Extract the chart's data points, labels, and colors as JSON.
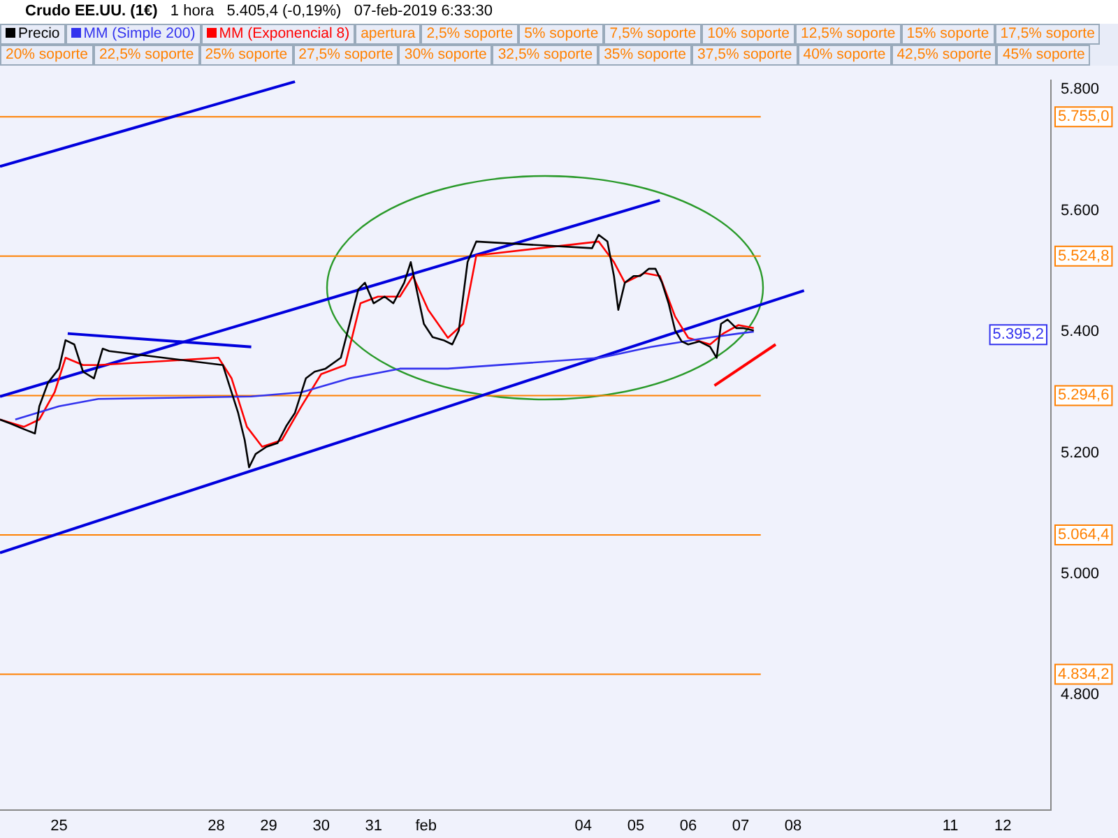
{
  "chart_data": {
    "type": "line",
    "title": "Crudo EE.UU. (1€)",
    "subtitle": "1 hora   5.405,4 (-0,19%)   07-feb-2019 6:33:30",
    "legend": "top left",
    "marker": "none",
    "line_style": "solid",
    "xlim": [
      "2019-01-23T21:00",
      "2019-02-12T22:00"
    ],
    "ylim": [
      4610,
      5815
    ],
    "xticks": [
      {
        "value": "2019-01-25",
        "label": "25"
      },
      {
        "value": "2019-01-28",
        "label": "28"
      },
      {
        "value": "2019-01-29",
        "label": "29"
      },
      {
        "value": "2019-01-30",
        "label": "30"
      },
      {
        "value": "2019-01-31",
        "label": "31"
      },
      {
        "value": "2019-02-01",
        "label": "feb"
      },
      {
        "value": "2019-02-04",
        "label": "04"
      },
      {
        "value": "2019-02-05",
        "label": "05"
      },
      {
        "value": "2019-02-06",
        "label": "06"
      },
      {
        "value": "2019-02-07",
        "label": "07"
      },
      {
        "value": "2019-02-08",
        "label": "08"
      },
      {
        "value": "2019-02-11",
        "label": "11"
      },
      {
        "value": "2019-02-12",
        "label": "12"
      }
    ],
    "yticks": [
      {
        "value": 4800,
        "label": "4.800"
      },
      {
        "value": 5000,
        "label": "5.000"
      },
      {
        "value": 5200,
        "label": "5.200"
      },
      {
        "value": 5400,
        "label": "5.400"
      },
      {
        "value": 5600,
        "label": "5.600"
      },
      {
        "value": 5800,
        "label": "5.800"
      }
    ],
    "series": [
      {
        "name": "Precio",
        "color": "#000000",
        "x": [
          "2019-01-23T21:00",
          "2019-01-24T02:00",
          "2019-01-24T08:00",
          "2019-01-24T13:00",
          "2019-01-24T15:00",
          "2019-01-24T19:00",
          "2019-01-25T00:00",
          "2019-01-25T03:00",
          "2019-01-25T07:00",
          "2019-01-25T11:00",
          "2019-01-25T16:00",
          "2019-01-25T20:00",
          "2019-01-25T23:00",
          "2019-01-28T03:00",
          "2019-01-28T06:00",
          "2019-01-28T10:00",
          "2019-01-28T13:00",
          "2019-01-28T15:00",
          "2019-01-28T18:00",
          "2019-01-28T23:00",
          "2019-01-29T04:00",
          "2019-01-29T08:00",
          "2019-01-29T12:00",
          "2019-01-29T17:00",
          "2019-01-29T21:00",
          "2019-01-30T02:00",
          "2019-01-30T09:00",
          "2019-01-30T13:00",
          "2019-01-30T17:00",
          "2019-01-30T20:00",
          "2019-01-31T00:00",
          "2019-01-31T05:00",
          "2019-01-31T09:00",
          "2019-01-31T14:00",
          "2019-01-31T17:00",
          "2019-01-31T19:00",
          "2019-01-31T23:00",
          "2019-02-01T03:00",
          "2019-02-01T08:00",
          "2019-02-01T12:00",
          "2019-02-01T15:00",
          "2019-02-01T19:00",
          "2019-02-01T23:00",
          "2019-02-04T04:00",
          "2019-02-04T07:00",
          "2019-02-04T11:00",
          "2019-02-04T14:00",
          "2019-02-04T16:00",
          "2019-02-04T19:00",
          "2019-02-04T23:00",
          "2019-02-05T02:00",
          "2019-02-05T06:00",
          "2019-02-05T09:00",
          "2019-02-05T12:00",
          "2019-02-05T15:00",
          "2019-02-05T18:00",
          "2019-02-05T21:00",
          "2019-02-06T00:00",
          "2019-02-06T05:00",
          "2019-02-06T10:00",
          "2019-02-06T13:00",
          "2019-02-06T15:00",
          "2019-02-06T18:00",
          "2019-02-06T22:00",
          "2019-02-07T01:00",
          "2019-02-07T06:00"
        ],
        "values": [
          5255,
          5248,
          5239,
          5232,
          5277,
          5316,
          5339,
          5386,
          5379,
          5334,
          5323,
          5372,
          5368,
          5345,
          5311,
          5266,
          5221,
          5176,
          5198,
          5210,
          5216,
          5244,
          5266,
          5323,
          5334,
          5339,
          5357,
          5413,
          5470,
          5481,
          5447,
          5458,
          5447,
          5481,
          5515,
          5481,
          5413,
          5391,
          5386,
          5379,
          5402,
          5515,
          5549,
          5538,
          5560,
          5549,
          5492,
          5436,
          5481,
          5492,
          5492,
          5504,
          5504,
          5481,
          5447,
          5402,
          5384,
          5379,
          5384,
          5375,
          5357,
          5413,
          5420,
          5406,
          5406,
          5402
        ]
      },
      {
        "name": "MM (Simple 200)",
        "color": "#3333ee",
        "x": [
          "2019-01-24T04:00",
          "2019-01-25T00:00",
          "2019-01-25T18:00",
          "2019-01-28T16:00",
          "2019-01-29T15:00",
          "2019-01-30T13:00",
          "2019-01-31T12:00",
          "2019-02-01T10:00",
          "2019-02-04T08:00",
          "2019-02-05T07:00",
          "2019-02-06T05:00",
          "2019-02-06T23:00",
          "2019-02-07T06:00"
        ],
        "values": [
          5255,
          5277,
          5289,
          5293,
          5300,
          5323,
          5339,
          5339,
          5357,
          5375,
          5388,
          5397,
          5400
        ]
      },
      {
        "name": "MM (Exponencial 8)",
        "color": "#ff0000",
        "x": [
          "2019-01-23T21:00",
          "2019-01-24T08:00",
          "2019-01-24T15:00",
          "2019-01-24T22:00",
          "2019-01-25T03:00",
          "2019-01-25T11:00",
          "2019-01-25T18:00",
          "2019-01-28T01:00",
          "2019-01-28T07:00",
          "2019-01-28T14:00",
          "2019-01-28T21:00",
          "2019-01-29T06:00",
          "2019-01-29T15:00",
          "2019-01-30T00:00",
          "2019-01-30T11:00",
          "2019-01-30T18:00",
          "2019-01-31T02:00",
          "2019-01-31T12:00",
          "2019-01-31T18:00",
          "2019-02-01T01:00",
          "2019-02-01T10:00",
          "2019-02-01T17:00",
          "2019-02-01T23:00",
          "2019-02-04T07:00",
          "2019-02-04T14:00",
          "2019-02-04T19:00",
          "2019-02-05T04:00",
          "2019-02-05T11:00",
          "2019-02-05T18:00",
          "2019-02-06T00:00",
          "2019-02-06T10:00",
          "2019-02-06T16:00",
          "2019-02-06T23:00",
          "2019-02-07T06:00"
        ],
        "values": [
          5255,
          5243,
          5255,
          5300,
          5357,
          5345,
          5345,
          5357,
          5323,
          5243,
          5210,
          5221,
          5277,
          5330,
          5345,
          5447,
          5458,
          5458,
          5492,
          5436,
          5390,
          5413,
          5526,
          5549,
          5515,
          5481,
          5497,
          5492,
          5425,
          5390,
          5379,
          5397,
          5411,
          5406
        ]
      },
      {
        "color": "#0000dd",
        "x": [
          "2019-01-23T21:00",
          "2019-01-29T12:00"
        ],
        "values": [
          5673,
          5813
        ]
      },
      {
        "color": "#0000dd",
        "x": [
          "2019-01-23T21:00",
          "2019-02-05T11:00"
        ],
        "values": [
          5293,
          5617
        ]
      },
      {
        "color": "#0000dd",
        "x": [
          "2019-01-23T21:00",
          "2019-02-08T05:00"
        ],
        "values": [
          5035,
          5468
        ]
      },
      {
        "color": "#0000dd",
        "x": [
          "2019-01-25T04:00",
          "2019-01-28T16:00"
        ],
        "values": [
          5397,
          5375
        ]
      },
      {
        "color": "#ff0000",
        "x": [
          "2019-02-06T12:00",
          "2019-02-07T16:00"
        ],
        "values": [
          5311,
          5379
        ]
      }
    ],
    "ref_lines": [
      {
        "axis": "y",
        "value": 5755.0,
        "label": "5.755,0",
        "color": "#ff8000"
      },
      {
        "axis": "y",
        "value": 5524.8,
        "label": "5.524,8",
        "color": "#ff8000"
      },
      {
        "axis": "y",
        "value": 5294.6,
        "label": "5.294,6",
        "color": "#ff8000"
      },
      {
        "axis": "y",
        "value": 5064.4,
        "label": "5.064,4",
        "color": "#ff8000"
      },
      {
        "axis": "y",
        "value": 4834.2,
        "label": "4.834,2",
        "color": "#ff8000"
      }
    ],
    "annotations": [
      {
        "text": "5.395,2",
        "y": 5395.2
      },
      "apertura",
      "2,5% soporte",
      "5% soporte",
      "7,5% soporte",
      "10% soporte",
      "12,5% soporte",
      "15% soporte",
      "17,5% soporte",
      "20% soporte",
      "22,5% soporte",
      "25% soporte",
      "27,5% soporte",
      "30% soporte",
      "32,5% soporte",
      "35% soporte",
      "37,5% soporte",
      "40% soporte",
      "42,5% soporte",
      "45% soporte"
    ]
  }
}
